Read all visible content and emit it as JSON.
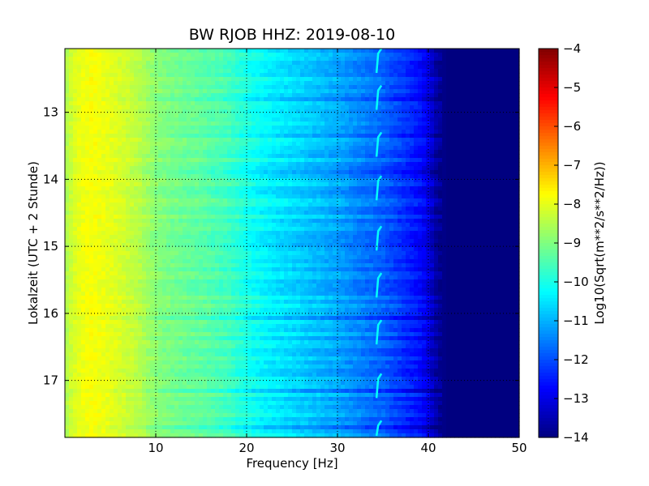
{
  "chart_data": {
    "type": "heatmap",
    "title": "BW RJOB HHZ: 2019-08-10",
    "xlabel": "Frequency [Hz]",
    "ylabel": "Lokalzeit (UTC + 2 Stunde)",
    "xlim": [
      0,
      50
    ],
    "ylim": [
      17.85,
      12.05
    ],
    "y_inverted": true,
    "grid": true,
    "x_ticks": [
      10,
      20,
      30,
      40,
      50
    ],
    "x_tick_labels": [
      "10",
      "20",
      "30",
      "40",
      "50"
    ],
    "y_ticks": [
      13,
      14,
      15,
      16,
      17
    ],
    "y_tick_labels": [
      "13",
      "14",
      "15",
      "16",
      "17"
    ],
    "colormap": "jet",
    "colorbar": {
      "label": "Log10(Sqrt(m**2/s**2/Hz))",
      "range": [
        -14,
        -4
      ],
      "ticks": [
        -4,
        -5,
        -6,
        -7,
        -8,
        -9,
        -10,
        -11,
        -12,
        -13,
        -14
      ],
      "tick_labels": [
        "−4",
        "−5",
        "−6",
        "−7",
        "−8",
        "−9",
        "−10",
        "−11",
        "−12",
        "−13",
        "−14"
      ]
    },
    "spectrum_profile": {
      "frequency_hz": [
        0,
        1,
        2,
        3,
        5,
        8,
        10,
        12,
        15,
        18,
        20,
        22,
        25,
        28,
        30,
        32,
        35,
        37,
        39,
        40,
        41,
        42,
        45,
        50
      ],
      "log10_amplitude": [
        -8.6,
        -8.1,
        -7.9,
        -7.8,
        -8.0,
        -8.4,
        -8.9,
        -9.1,
        -9.3,
        -9.6,
        -10.0,
        -10.3,
        -10.6,
        -10.9,
        -11.1,
        -11.4,
        -11.8,
        -12.2,
        -12.6,
        -13.0,
        -13.7,
        -14.0,
        -14.0,
        -14.0
      ]
    },
    "recurring_feature": {
      "description_frequency_hz": 34.3,
      "times_h": [
        12.05,
        12.6,
        13.3,
        13.95,
        14.7,
        15.4,
        16.1,
        16.9,
        17.6
      ]
    }
  }
}
